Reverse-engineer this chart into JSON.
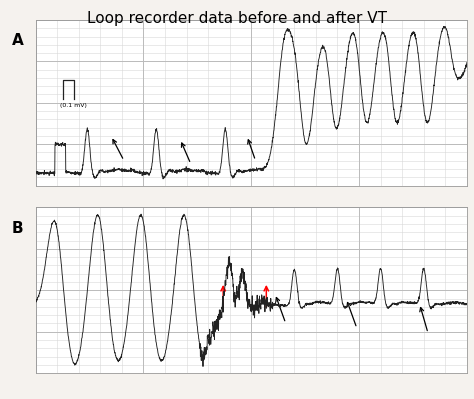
{
  "title": "Loop recorder data before and after VT",
  "title_fontsize": 11,
  "background_color": "#f5f2ee",
  "panel_bg": "#ffffff",
  "grid_minor_color": "#d8d8d8",
  "grid_major_color": "#bbbbbb",
  "ecg_color": "#222222",
  "label_A": "A",
  "label_B": "B",
  "calibration_label": "(0.1 mV)",
  "black_arrows_A": [
    [
      0.175,
      0.3,
      0.205,
      0.15
    ],
    [
      0.335,
      0.28,
      0.36,
      0.13
    ],
    [
      0.49,
      0.3,
      0.51,
      0.15
    ]
  ],
  "black_arrows_B": [
    [
      0.555,
      0.48,
      0.58,
      0.3
    ],
    [
      0.72,
      0.45,
      0.745,
      0.27
    ],
    [
      0.89,
      0.42,
      0.91,
      0.24
    ]
  ],
  "red_arrows_B": [
    [
      0.435,
      0.55,
      0.435,
      0.38
    ],
    [
      0.535,
      0.55,
      0.535,
      0.38
    ]
  ]
}
